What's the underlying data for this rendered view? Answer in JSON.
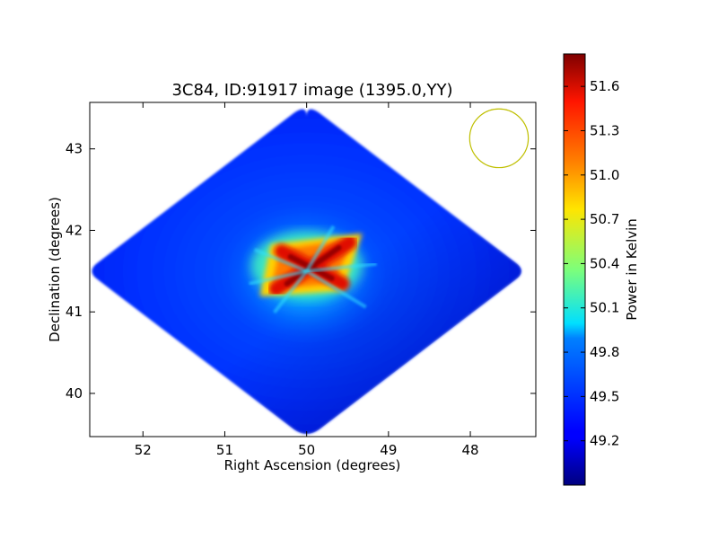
{
  "chart_data": {
    "type": "heatmap",
    "title": "3C84, ID:91917 image (1395.0,YY)",
    "xlabel": "Right Ascension (degrees)",
    "ylabel": "Declination (degrees)",
    "xlim": [
      52.65,
      47.2
    ],
    "ylim": [
      39.47,
      43.57
    ],
    "x_ticks": [
      52,
      51,
      50,
      49,
      48
    ],
    "x_tick_labels": [
      "52",
      "51",
      "50",
      "49",
      "48"
    ],
    "y_ticks": [
      40,
      41,
      42,
      43
    ],
    "y_tick_labels": [
      "40",
      "41",
      "42",
      "43"
    ],
    "grid": false,
    "colormap": "jet",
    "colorbar": {
      "label": "Power in Kelvin",
      "range": [
        48.9,
        51.82
      ],
      "ticks": [
        49.2,
        49.5,
        49.8,
        50.1,
        50.4,
        50.7,
        51.0,
        51.3,
        51.6
      ],
      "tick_labels": [
        "49.2",
        "49.5",
        "49.8",
        "50.1",
        "50.4",
        "50.7",
        "51.0",
        "51.3",
        "51.6"
      ]
    },
    "map": {
      "center": [
        50.0,
        41.5
      ],
      "half_width_ra": 2.7,
      "half_height_dec": 2.05,
      "background_level": 49.3,
      "peak_level": 51.75
    },
    "beam": {
      "center": [
        47.65,
        43.13
      ],
      "radius_dec": 0.36,
      "color": "#bfbf00"
    }
  }
}
